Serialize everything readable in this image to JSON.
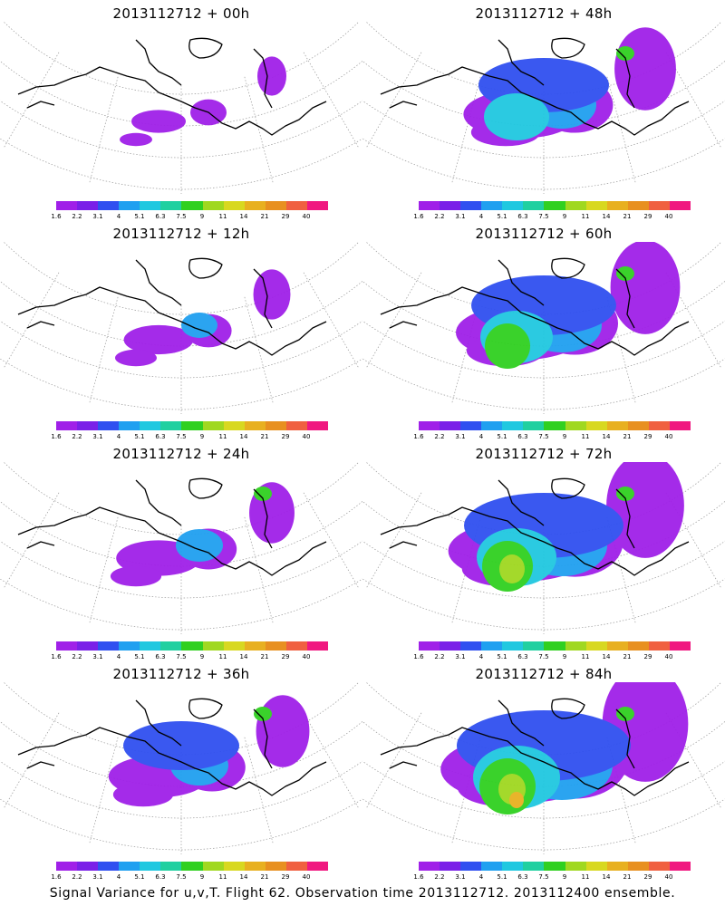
{
  "colorbar": {
    "ticks": [
      "1.6",
      "2.2",
      "3.1",
      "4",
      "5.1",
      "6.3",
      "7.5",
      "9",
      "11",
      "14",
      "21",
      "29",
      "40"
    ],
    "colors": [
      "#a020e8",
      "#7a20e8",
      "#3050f0",
      "#20a0f0",
      "#20c8e0",
      "#20d0a0",
      "#30d020",
      "#a0d820",
      "#d8d820",
      "#e8b020",
      "#e89020",
      "#f06040",
      "#f01880"
    ]
  },
  "panels": [
    {
      "title": "2013112712 + 00h",
      "intensity": 0
    },
    {
      "title": "2013112712 + 48h",
      "intensity": 4
    },
    {
      "title": "2013112712 + 12h",
      "intensity": 1
    },
    {
      "title": "2013112712 + 60h",
      "intensity": 5
    },
    {
      "title": "2013112712 + 24h",
      "intensity": 2
    },
    {
      "title": "2013112712 + 72h",
      "intensity": 6
    },
    {
      "title": "2013112712 + 36h",
      "intensity": 3
    },
    {
      "title": "2013112712 + 84h",
      "intensity": 7
    }
  ],
  "footer": "Signal Variance for u,v,T. Flight 62. Observation time 2013112712. 2013112400 ensemble."
}
